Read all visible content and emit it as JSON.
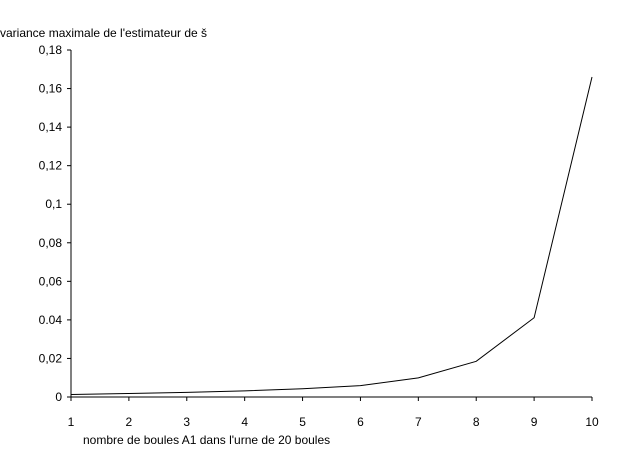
{
  "chart_data": {
    "type": "line",
    "title": "",
    "ylabel": "variance maximale de l'estimateur de š",
    "xlabel": "nombre de boules A1 dans l'urne de 20 boules",
    "x": [
      1,
      2,
      3,
      4,
      5,
      6,
      7,
      8,
      9,
      10
    ],
    "series": [
      {
        "values": [
          0.0013,
          0.0018,
          0.0024,
          0.0032,
          0.0043,
          0.0059,
          0.0099,
          0.0185,
          0.0411,
          0.166
        ]
      }
    ],
    "xlim": [
      1,
      10
    ],
    "ylim": [
      0,
      0.18
    ],
    "xticks": [
      "1",
      "2",
      "3",
      "4",
      "5",
      "6",
      "7",
      "8",
      "9",
      "10"
    ],
    "yticks": [
      {
        "value": 0,
        "label": "0"
      },
      {
        "value": 0.02,
        "label": "0,02"
      },
      {
        "value": 0.04,
        "label": "0.04"
      },
      {
        "value": 0.06,
        "label": "0,06"
      },
      {
        "value": 0.08,
        "label": "0,08"
      },
      {
        "value": 0.1,
        "label": "0,1"
      },
      {
        "value": 0.12,
        "label": "0,12"
      },
      {
        "value": 0.14,
        "label": "0,14"
      },
      {
        "value": 0.16,
        "label": "0,16"
      },
      {
        "value": 0.18,
        "label": "0,18"
      }
    ],
    "grid": false,
    "line_color": "#000000"
  }
}
